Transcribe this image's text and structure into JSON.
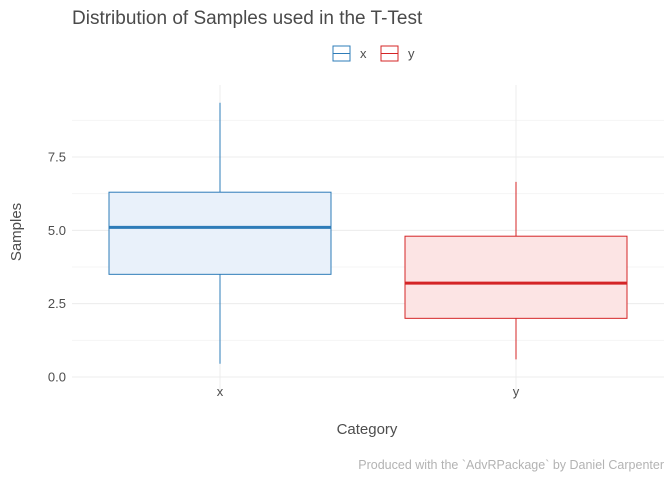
{
  "chart_data": {
    "type": "box",
    "title": "Distribution of Samples used in the T-Test",
    "xlabel": "Category",
    "ylabel": "Samples",
    "caption": "Produced with the `AdvRPackage` by Daniel Carpenter",
    "categories": [
      "x",
      "y"
    ],
    "ylim": [
      0,
      9.7
    ],
    "yticks": [
      0.0,
      2.5,
      5.0,
      7.5
    ],
    "ytick_labels": [
      "0.0",
      "2.5",
      "5.0",
      "7.5"
    ],
    "grid": true,
    "legend": {
      "position": "top",
      "entries": [
        {
          "label": "x",
          "color": "#2e7cb8"
        },
        {
          "label": "y",
          "color": "#d42426"
        }
      ]
    },
    "series": [
      {
        "category": "x",
        "color": "#2e7cb8",
        "fill": "#e9f1fa",
        "min": 0.45,
        "q1": 3.5,
        "median": 5.1,
        "q3": 6.3,
        "max": 9.35
      },
      {
        "category": "y",
        "color": "#d42426",
        "fill": "#fce4e4",
        "min": 0.6,
        "q1": 2.0,
        "median": 3.2,
        "q3": 4.8,
        "max": 6.65
      }
    ]
  }
}
